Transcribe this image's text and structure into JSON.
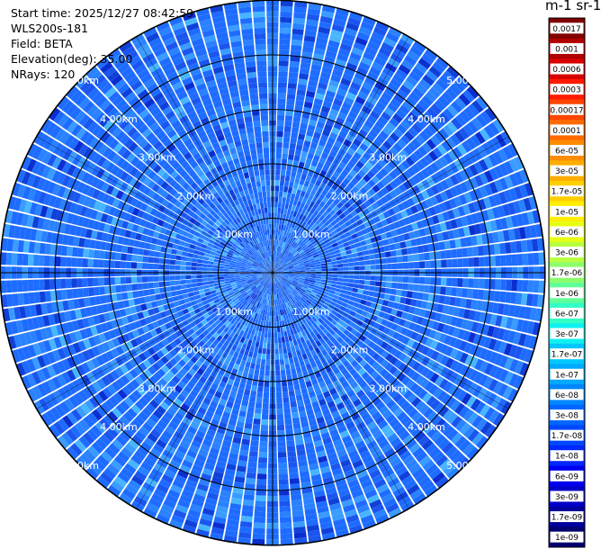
{
  "info": {
    "start_time": "Start time: 2025/12/27 08:42:59",
    "instrument": "WLS200s-181",
    "field": "Field: BETA",
    "elevation": "Elevation(deg): 35.00",
    "nrays": "NRays: 120"
  },
  "colorbar": {
    "units_label": "m-1 sr-1",
    "tick_labels": [
      "0.0017",
      "0.001",
      "0.0006",
      "0.0003",
      "0.00017",
      "0.0001",
      "6e-05",
      "3e-05",
      "1.7e-05",
      "1e-05",
      "6e-06",
      "3e-06",
      "1.7e-06",
      "1e-06",
      "6e-07",
      "3e-07",
      "1.7e-07",
      "1e-07",
      "6e-08",
      "3e-08",
      "1.7e-08",
      "1e-08",
      "6e-09",
      "3e-09",
      "1.7e-09",
      "1e-09"
    ],
    "colors": [
      "#800000",
      "#b00000",
      "#d80000",
      "#ff1a00",
      "#ff4500",
      "#ff6a00",
      "#ff8c00",
      "#ffad00",
      "#ffcf00",
      "#ffee00",
      "#e6ff12",
      "#b8ff40",
      "#8cff6c",
      "#60ff98",
      "#32ffc6",
      "#10f0f0",
      "#00c8ff",
      "#00a8ff",
      "#0086ff",
      "#0066ff",
      "#0048ff",
      "#0028ff",
      "#0000f0",
      "#0000c8",
      "#00009c",
      "#000070"
    ]
  },
  "chart_data": {
    "type": "heatmap",
    "projection": "polar-ppi",
    "field": "BETA",
    "units": "m-1 sr-1",
    "scale": "log",
    "value_range": [
      1e-09,
      0.0017
    ],
    "nrays": 120,
    "range_rings_km": [
      1,
      2,
      3,
      4,
      5
    ],
    "range_ring_labels": [
      "1.00km",
      "2.00km",
      "3.00km",
      "4.00km",
      "5.00km"
    ],
    "max_range_km": 5,
    "grid": true,
    "dominant_values_m-1sr-1": [
      3e-08,
      6e-08,
      1e-07,
      1.7e-08
    ]
  }
}
